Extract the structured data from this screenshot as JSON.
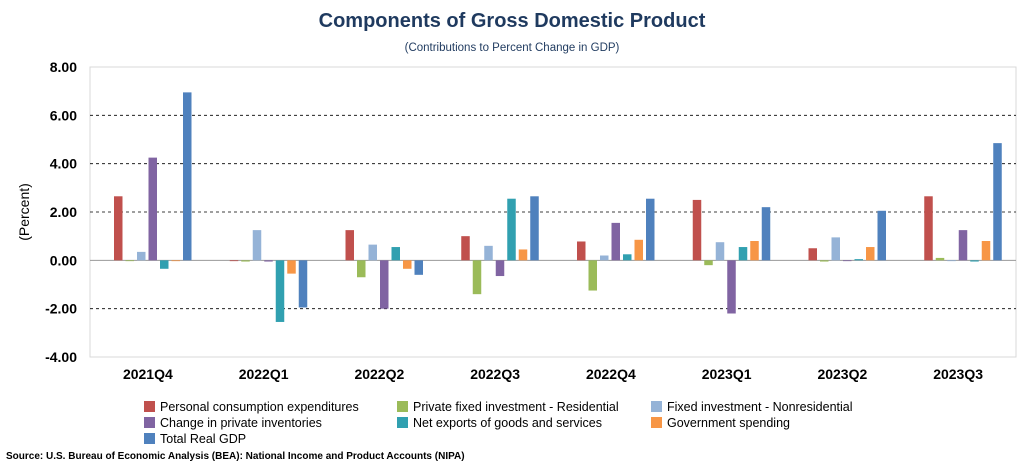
{
  "chart_data": {
    "type": "bar",
    "title": "Components of Gross Domestic Product",
    "subtitle": "(Contributions to Percent Change in GDP)",
    "ylabel": "(Percent)",
    "xlabel": "",
    "ylim": [
      -4,
      8
    ],
    "yticks": [
      "8.00",
      "6.00",
      "4.00",
      "2.00",
      "0.00",
      "-2.00",
      "-4.00"
    ],
    "ytick_values": [
      8,
      6,
      4,
      2,
      0,
      -2,
      -4
    ],
    "grid": "horizontal dashed",
    "legend_position": "bottom",
    "categories": [
      "2021Q4",
      "2022Q1",
      "2022Q2",
      "2022Q3",
      "2022Q4",
      "2023Q1",
      "2023Q2",
      "2023Q3"
    ],
    "series": [
      {
        "name": "Personal consumption expenditures",
        "color": "#c0504d",
        "values": [
          2.65,
          0.0,
          1.25,
          1.0,
          0.78,
          2.5,
          0.5,
          2.65
        ]
      },
      {
        "name": "Private fixed investment - Residential",
        "color": "#9bbb59",
        "values": [
          0.0,
          -0.05,
          -0.7,
          -1.4,
          -1.25,
          -0.2,
          -0.05,
          0.1
        ]
      },
      {
        "name": "Fixed investment - Nonresidential",
        "color": "#95b3d7",
        "values": [
          0.35,
          1.25,
          0.65,
          0.6,
          0.2,
          0.75,
          0.95,
          0.0
        ]
      },
      {
        "name": "Change in private inventories",
        "color": "#8064a2",
        "values": [
          4.25,
          -0.05,
          -2.0,
          -0.65,
          1.55,
          -2.2,
          0.0,
          1.25
        ]
      },
      {
        "name": "Net exports of goods and services",
        "color": "#31a0b0",
        "values": [
          -0.35,
          -2.55,
          0.55,
          2.55,
          0.25,
          0.55,
          0.05,
          -0.05
        ]
      },
      {
        "name": "Government spending",
        "color": "#f79646",
        "values": [
          0.0,
          -0.55,
          -0.35,
          0.45,
          0.85,
          0.8,
          0.55,
          0.8
        ]
      },
      {
        "name": "Total Real GDP",
        "color": "#4f81bd",
        "values": [
          6.95,
          -1.95,
          -0.6,
          2.65,
          2.55,
          2.2,
          2.05,
          4.85
        ]
      }
    ]
  },
  "source": "Source: U.S. Bureau of Economic Analysis (BEA): National Income and Product Accounts (NIPA)"
}
